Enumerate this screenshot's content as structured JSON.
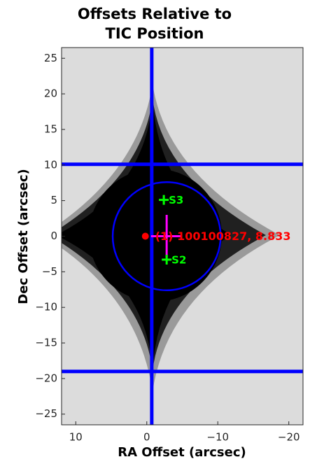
{
  "chart_data": {
    "type": "scatter",
    "title": "Offsets Relative to TIC Position",
    "x_label": "RA Offset (arcsec)",
    "y_label": "Dec Offset (arcsec)",
    "xlim": [
      12,
      -22
    ],
    "ylim": [
      -26.5,
      26.5
    ],
    "xticks": [
      10,
      0,
      {
        "value": -10,
        "label": "−10"
      },
      {
        "value": -20,
        "label": "−20"
      }
    ],
    "yticks": [
      25,
      20,
      15,
      10,
      5,
      0,
      {
        "value": -5,
        "label": "−5"
      },
      {
        "value": -10,
        "label": "−10"
      },
      {
        "value": -15,
        "label": "−15"
      },
      {
        "value": -20,
        "label": "−20"
      },
      {
        "value": -25,
        "label": "−25"
      }
    ],
    "reference_lines": {
      "color": "#0000ff",
      "x": [
        -0.7
      ],
      "y": [
        10.1,
        -19.0
      ]
    },
    "circle": {
      "color": "#0000ff",
      "x": -2.8,
      "y": 0,
      "radius": 7.6
    },
    "centroid": {
      "color": "#ff00ff",
      "x": -2.8,
      "y": 0,
      "x_err": 2.2,
      "y_err": 3.0
    },
    "series": [
      {
        "name": "(1) 100100827, 8.833",
        "color": "#ff0000",
        "marker": "dot",
        "x": [
          0.2
        ],
        "values": [
          0
        ]
      },
      {
        "color": "#00ff00",
        "marker": "plus",
        "labels": [
          "S3",
          "S2"
        ],
        "x": [
          -2.4,
          -2.8
        ],
        "values": [
          5.1,
          -3.3
        ]
      }
    ]
  }
}
